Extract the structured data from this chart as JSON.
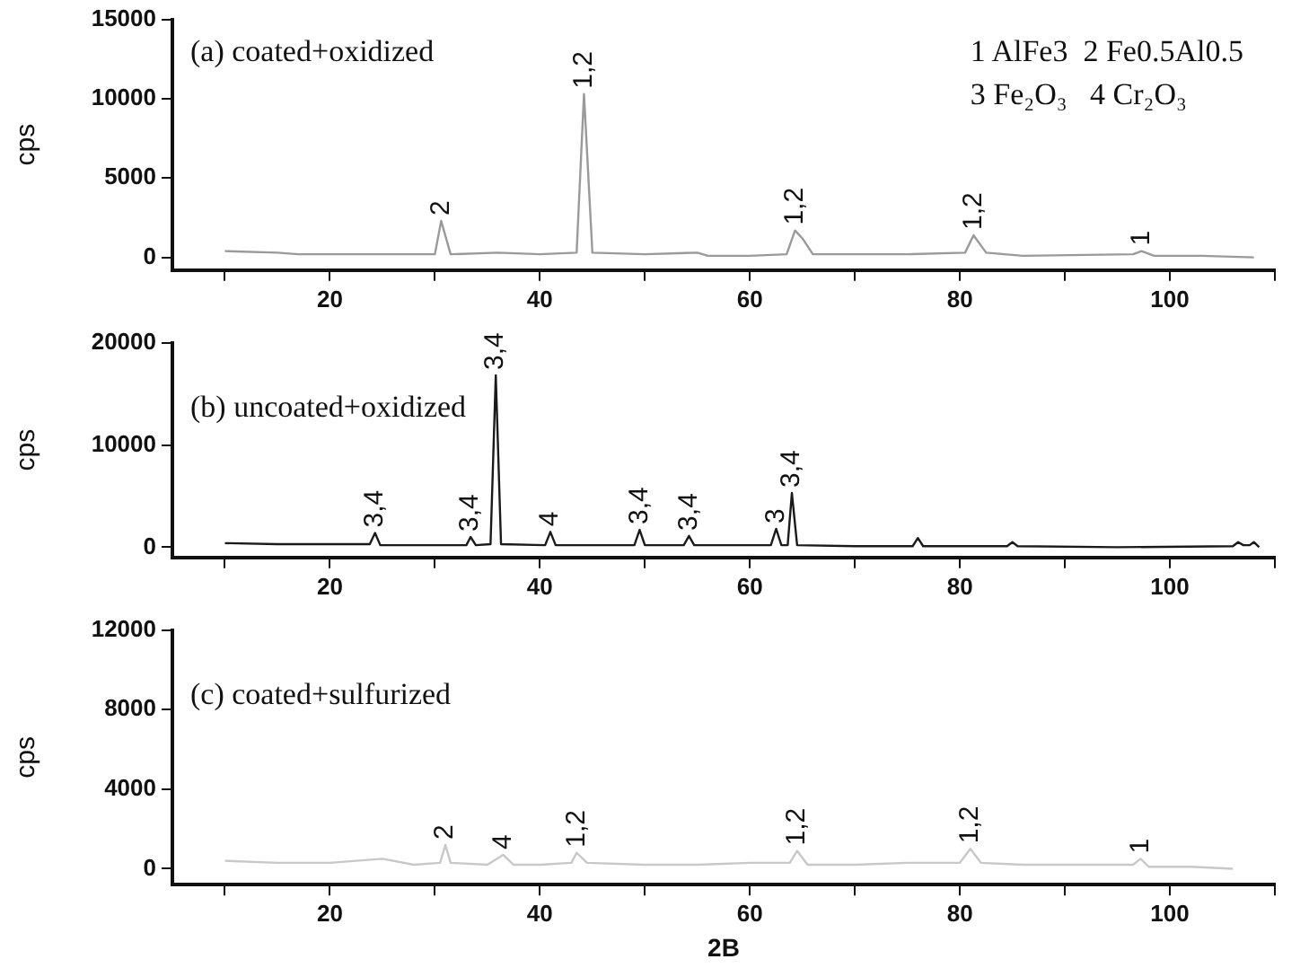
{
  "chart_data": [
    {
      "type": "line",
      "ylabel": "cps",
      "xlim": [
        5,
        110
      ],
      "xticks": [
        {
          "value": 10,
          "label": null
        },
        20,
        {
          "value": 30,
          "label": null
        },
        40,
        {
          "value": 50,
          "label": null
        },
        60,
        {
          "value": 70,
          "label": null
        },
        80,
        {
          "value": 90,
          "label": null
        },
        100,
        {
          "value": 110,
          "label": null
        }
      ],
      "ylim": [
        -800,
        15000
      ],
      "yticks": [
        0,
        5000,
        10000,
        15000
      ],
      "marker": "none",
      "series": [
        {
          "color": "#9a9a9a",
          "x": [
            10,
            15,
            17,
            25,
            30,
            30.6,
            31.5,
            36,
            40,
            43.5,
            44.2,
            45,
            50,
            55,
            56,
            60,
            63.5,
            64.3,
            65,
            66,
            70,
            75,
            80.5,
            81.3,
            82.5,
            86,
            96.5,
            97.3,
            98.5,
            103,
            108
          ],
          "values": [
            400,
            300,
            200,
            200,
            200,
            2300,
            200,
            300,
            200,
            300,
            10300,
            300,
            200,
            300,
            100,
            100,
            200,
            1700,
            1200,
            200,
            200,
            200,
            300,
            1400,
            300,
            100,
            200,
            400,
            100,
            100,
            0
          ]
        }
      ],
      "annotations": [
        "(a) coated+oxidized",
        "1 AlFe3  2 Fe0.5Al0.5",
        "3 Fe₂O₃   4 Cr₂O₃",
        {
          "text": "2",
          "x": 30.6,
          "y": 2300
        },
        {
          "text": "1,2",
          "x": 44.2,
          "y": 10300
        },
        {
          "text": "1,2",
          "x": 64.3,
          "y": 1700
        },
        {
          "text": "1,2",
          "x": 81.3,
          "y": 1400
        },
        {
          "text": "1",
          "x": 97.3,
          "y": 400
        }
      ]
    },
    {
      "type": "line",
      "ylabel": "cps",
      "xlim": [
        5,
        110
      ],
      "xticks": [
        {
          "value": 10,
          "label": null
        },
        20,
        {
          "value": 30,
          "label": null
        },
        40,
        {
          "value": 50,
          "label": null
        },
        60,
        {
          "value": 70,
          "label": null
        },
        80,
        {
          "value": 90,
          "label": null
        },
        100,
        {
          "value": 110,
          "label": null
        }
      ],
      "ylim": [
        -1000,
        20000
      ],
      "yticks": [
        0,
        10000,
        20000
      ],
      "marker": "none",
      "series": [
        {
          "color": "#1a1a1a",
          "x": [
            10,
            15,
            20,
            23.8,
            24.3,
            24.8,
            30,
            33,
            33.4,
            33.9,
            35.3,
            35.8,
            36.3,
            40.5,
            41,
            41.5,
            45,
            49,
            49.5,
            50,
            53.7,
            54.2,
            54.7,
            58,
            62,
            62.5,
            63,
            63.6,
            64,
            64.5,
            70,
            75.5,
            76,
            76.5,
            84.5,
            85,
            85.5,
            95,
            106,
            106.5,
            107,
            107.6,
            108,
            108.5
          ],
          "values": [
            400,
            300,
            300,
            300,
            1400,
            200,
            200,
            200,
            1000,
            200,
            300,
            16800,
            300,
            200,
            1500,
            200,
            200,
            200,
            1700,
            200,
            200,
            1100,
            200,
            200,
            200,
            1800,
            200,
            200,
            5300,
            200,
            100,
            100,
            900,
            100,
            100,
            500,
            100,
            0,
            100,
            500,
            200,
            200,
            500,
            0
          ]
        }
      ],
      "annotations": [
        "(b) uncoated+oxidized",
        {
          "text": "3,4",
          "x": 24.3,
          "y": 1400
        },
        {
          "text": "3,4",
          "x": 33.4,
          "y": 1000
        },
        {
          "text": "3,4",
          "x": 35.8,
          "y": 16800
        },
        {
          "text": "4",
          "x": 41,
          "y": 1500
        },
        {
          "text": "3,4",
          "x": 49.5,
          "y": 1700
        },
        {
          "text": "3,4",
          "x": 54.2,
          "y": 1100
        },
        {
          "text": "3",
          "x": 62.5,
          "y": 1800
        },
        {
          "text": "3,4",
          "x": 64,
          "y": 5300
        }
      ]
    },
    {
      "type": "line",
      "ylabel": "cps",
      "xlabel": "2B",
      "xlim": [
        5,
        110
      ],
      "xticks": [
        {
          "value": 10,
          "label": null
        },
        20,
        {
          "value": 30,
          "label": null
        },
        40,
        {
          "value": 50,
          "label": null
        },
        60,
        {
          "value": 70,
          "label": null
        },
        80,
        {
          "value": 90,
          "label": null
        },
        100,
        {
          "value": 110,
          "label": null
        }
      ],
      "ylim": [
        -800,
        12000
      ],
      "yticks": [
        0,
        4000,
        8000,
        12000
      ],
      "marker": "none",
      "series": [
        {
          "color": "#c8c8c8",
          "x": [
            10,
            15,
            20,
            25,
            28,
            30.5,
            31,
            31.5,
            35,
            36.5,
            37.5,
            40,
            43,
            43.5,
            44.5,
            50,
            55,
            60,
            63.8,
            64.5,
            65.5,
            70,
            75,
            80,
            81,
            82,
            86,
            90,
            96.5,
            97.2,
            98,
            102,
            106
          ],
          "values": [
            400,
            300,
            300,
            500,
            200,
            300,
            1200,
            300,
            200,
            700,
            200,
            200,
            300,
            800,
            300,
            200,
            200,
            300,
            300,
            900,
            200,
            200,
            300,
            300,
            1000,
            300,
            200,
            200,
            200,
            500,
            100,
            100,
            0
          ]
        }
      ],
      "annotations": [
        "(c) coated+sulfurized",
        {
          "text": "2",
          "x": 31,
          "y": 1200
        },
        {
          "text": "4",
          "x": 36.5,
          "y": 700
        },
        {
          "text": "1,2",
          "x": 43.5,
          "y": 800
        },
        {
          "text": "1,2",
          "x": 64.5,
          "y": 900
        },
        {
          "text": "1,2",
          "x": 81,
          "y": 1000
        },
        {
          "text": "1",
          "x": 97.2,
          "y": 500
        }
      ]
    }
  ]
}
